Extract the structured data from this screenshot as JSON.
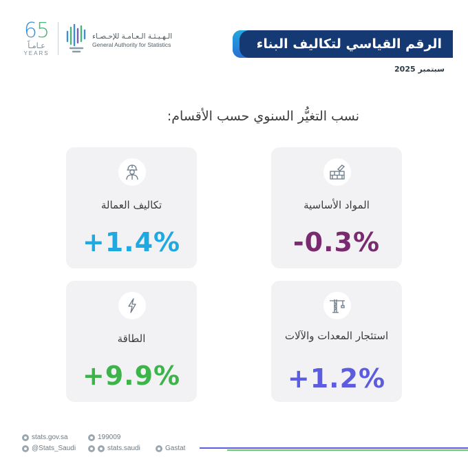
{
  "header": {
    "anniversary": {
      "number": "65",
      "arabic": "عـامـاً",
      "english": "YEARS"
    },
    "org_name_ar": "الـهـيـئـة الـعـامـة للإحـصـاء",
    "org_name_en": "General Authority for Statistics",
    "title": "الرقم القياسي لتكاليف البناء",
    "date": "سبتمبر 2025",
    "colors": {
      "banner": "#153a73",
      "banner_accent": "#1fa9e1"
    }
  },
  "section": {
    "title": "نسب التغيُّر السنوي حسب الأقسام:"
  },
  "cards": {
    "materials": {
      "label": "المواد الأساسية",
      "value": "-0.3%",
      "color": "#7a2a6e",
      "icon": "bricks-trowel-icon"
    },
    "labor": {
      "label": "تكاليف العمالة",
      "value": "+1.4%",
      "color": "#1fa9e1",
      "icon": "construction-worker-icon"
    },
    "equipment": {
      "label": "استئجار المعدات والآلات",
      "value": "+1.2%",
      "color": "#5b5ce0",
      "icon": "tower-crane-icon"
    },
    "energy": {
      "label": "الطاقة",
      "value": "+9.9%",
      "color": "#3cb44a",
      "icon": "lightning-bolt-icon"
    }
  },
  "footer": {
    "website": "stats.gov.sa",
    "phone": "199009",
    "x_handle": "@Stats_Saudi",
    "social_handle": "stats.saudi",
    "linkedin": "Gastat"
  }
}
